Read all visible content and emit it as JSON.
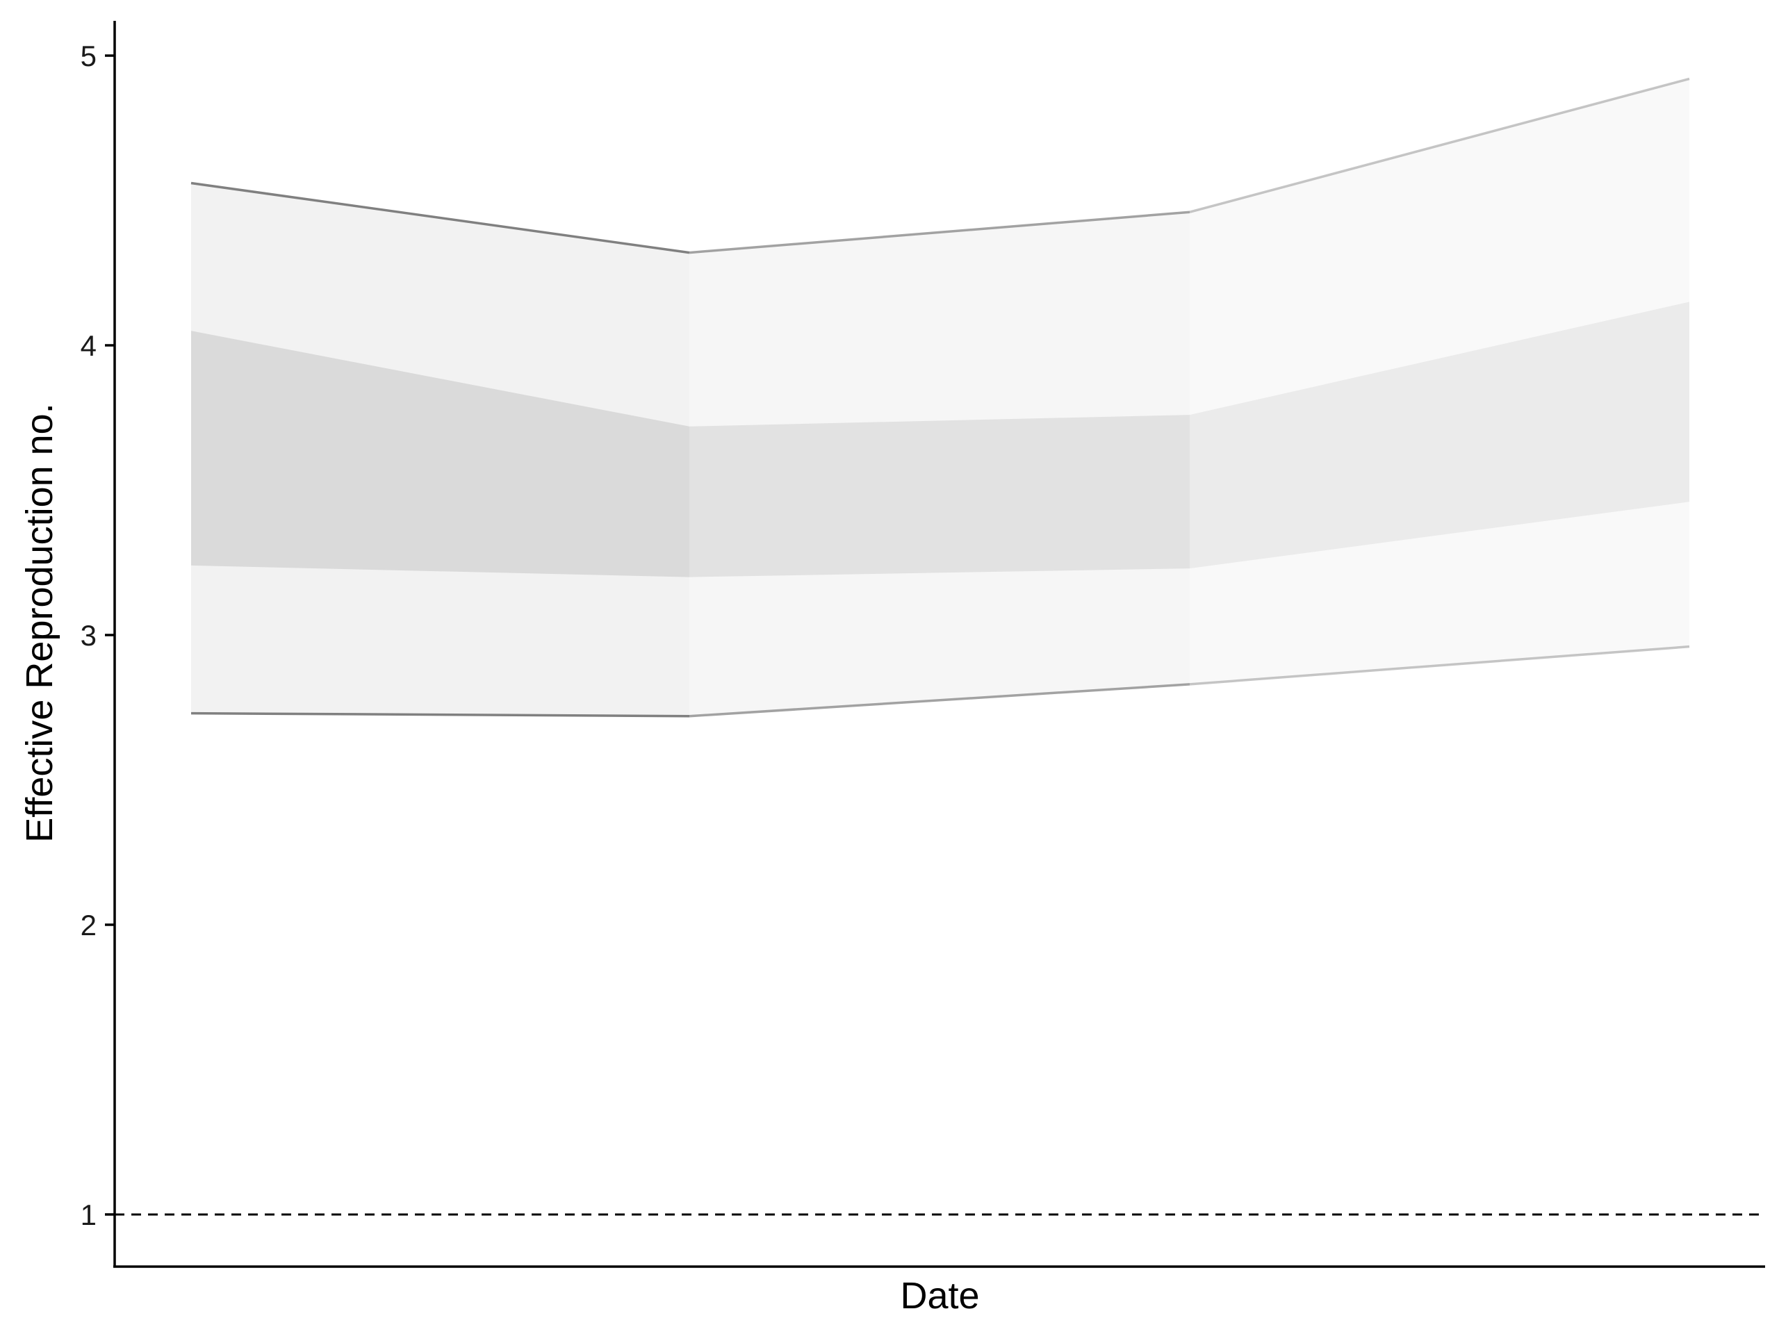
{
  "chart_data": {
    "type": "area",
    "title": "",
    "xlabel": "Date",
    "ylabel": "Effective Reproduction no.",
    "ylim": [
      0.82,
      5.12
    ],
    "y_ticks": [
      1,
      2,
      3,
      4,
      5
    ],
    "x_ticks": [],
    "reference_line": {
      "y": 1,
      "style": "dashed"
    },
    "grid": false,
    "x_index": [
      0,
      1,
      2,
      3
    ],
    "bands": [
      {
        "name": "",
        "lower": [
          2.73,
          2.72,
          2.83,
          2.96
        ],
        "upper": [
          4.56,
          4.32,
          4.46,
          4.92
        ]
      },
      {
        "name": "",
        "lower": [
          3.24,
          3.2,
          3.23,
          3.46
        ],
        "upper": [
          4.05,
          3.72,
          3.76,
          4.15
        ]
      }
    ],
    "segment_opacity": [
      1.0,
      0.72,
      0.45
    ],
    "colors": {
      "outer_band": "#f2f2f2",
      "inner_band": "#dadada",
      "bound_line": "#808080",
      "axis": "#000000",
      "reference_line": "#000000"
    }
  }
}
